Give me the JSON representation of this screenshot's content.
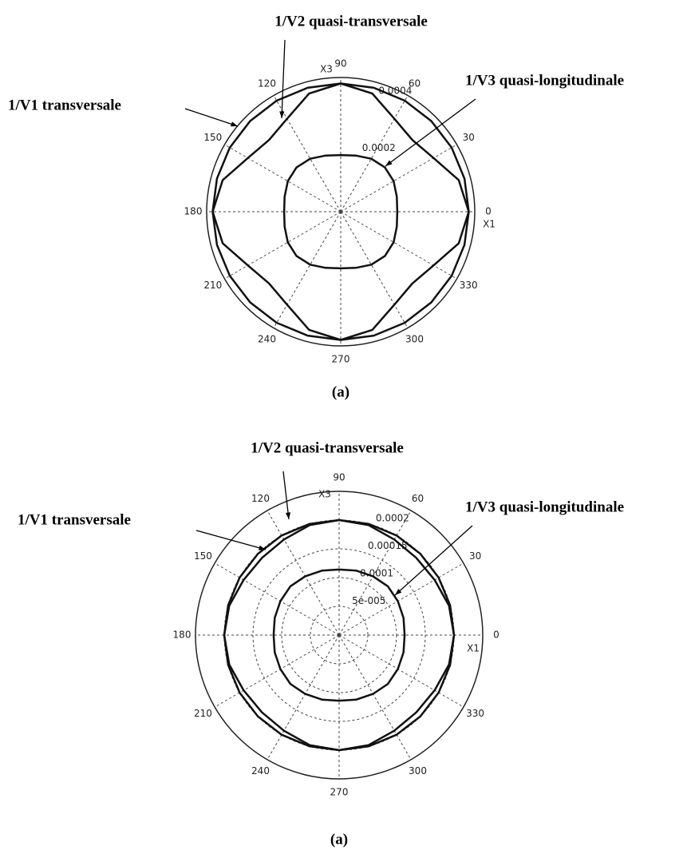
{
  "chart_data": [
    {
      "type": "polar",
      "caption": "(a)",
      "x_label": "X1",
      "y_label": "X3",
      "theta": [
        0,
        15,
        30,
        45,
        60,
        75,
        90,
        105,
        120,
        135,
        150,
        165,
        180,
        195,
        210,
        225,
        240,
        255,
        270,
        285,
        300,
        315,
        330,
        345
      ],
      "thetaticks": [
        0,
        30,
        60,
        90,
        120,
        150,
        180,
        210,
        240,
        270,
        300,
        330
      ],
      "rlim": [
        0,
        0.00045
      ],
      "rticks": [
        0.0002,
        0.0004
      ],
      "grid_circles": false,
      "series": [
        {
          "name": "1/V1 transversale",
          "color": "#111111",
          "values": [
            0.00043,
            0.00043,
            0.00043,
            0.00043,
            0.00043,
            0.00043,
            0.00043,
            0.00043,
            0.00043,
            0.00043,
            0.00043,
            0.00043,
            0.00043,
            0.00043,
            0.00043,
            0.00043,
            0.00043,
            0.00043,
            0.00043,
            0.00043,
            0.00043,
            0.00043,
            0.00043,
            0.00043
          ]
        },
        {
          "name": "1/V2 quasi-transversale",
          "color": "#111111",
          "values": [
            0.00043,
            0.00041,
            0.00036,
            0.00034,
            0.00036,
            0.00041,
            0.00043,
            0.00041,
            0.00036,
            0.00034,
            0.00036,
            0.00041,
            0.00043,
            0.00041,
            0.00036,
            0.00034,
            0.00036,
            0.00041,
            0.00043,
            0.00041,
            0.00036,
            0.00034,
            0.00036,
            0.00041
          ]
        },
        {
          "name": "1/V3 quasi-longitudinale",
          "color": "#111111",
          "values": [
            0.00019,
            0.000195,
            0.000205,
            0.00021,
            0.000205,
            0.000195,
            0.00019,
            0.000195,
            0.000205,
            0.00021,
            0.000205,
            0.000195,
            0.00019,
            0.000195,
            0.000205,
            0.00021,
            0.000205,
            0.000195,
            0.00019,
            0.000195,
            0.000205,
            0.00021,
            0.000205,
            0.000195
          ]
        }
      ]
    },
    {
      "type": "polar",
      "caption": "(a)",
      "x_label": "X1",
      "y_label": "X3",
      "theta": [
        0,
        15,
        30,
        45,
        60,
        75,
        90,
        105,
        120,
        135,
        150,
        165,
        180,
        195,
        210,
        225,
        240,
        255,
        270,
        285,
        300,
        315,
        330,
        345
      ],
      "thetaticks": [
        0,
        30,
        60,
        90,
        120,
        150,
        180,
        210,
        240,
        270,
        300,
        330
      ],
      "rlim": [
        0,
        0.00025
      ],
      "rticks": [
        {
          "value": 5e-05,
          "label": "5e-005"
        },
        0.0001,
        0.00015,
        0.0002
      ],
      "grid_circles": true,
      "series": [
        {
          "name": "1/V1 transversale",
          "color": "#111111",
          "values": [
            0.0002,
            0.0002,
            0.0002,
            0.0002,
            0.0002,
            0.0002,
            0.0002,
            0.0002,
            0.0002,
            0.0002,
            0.0002,
            0.0002,
            0.0002,
            0.0002,
            0.0002,
            0.0002,
            0.0002,
            0.0002,
            0.0002,
            0.0002,
            0.0002,
            0.0002,
            0.0002,
            0.0002
          ]
        },
        {
          "name": "1/V2 quasi-transversale",
          "color": "#111111",
          "values": [
            0.0002,
            0.000198,
            0.000192,
            0.00019,
            0.000192,
            0.000198,
            0.0002,
            0.000198,
            0.000192,
            0.00019,
            0.000192,
            0.000198,
            0.0002,
            0.000198,
            0.000192,
            0.00019,
            0.000192,
            0.000198,
            0.0002,
            0.000198,
            0.000192,
            0.00019,
            0.000192,
            0.000198
          ]
        },
        {
          "name": "1/V3 quasi-longitudinale",
          "color": "#111111",
          "values": [
            0.000114,
            0.000116,
            0.000118,
            0.00012,
            0.000118,
            0.000116,
            0.000114,
            0.000116,
            0.000118,
            0.00012,
            0.000118,
            0.000116,
            0.000114,
            0.000116,
            0.000118,
            0.00012,
            0.000118,
            0.000116,
            0.000114,
            0.000116,
            0.000118,
            0.00012,
            0.000118,
            0.000116
          ]
        }
      ]
    }
  ]
}
